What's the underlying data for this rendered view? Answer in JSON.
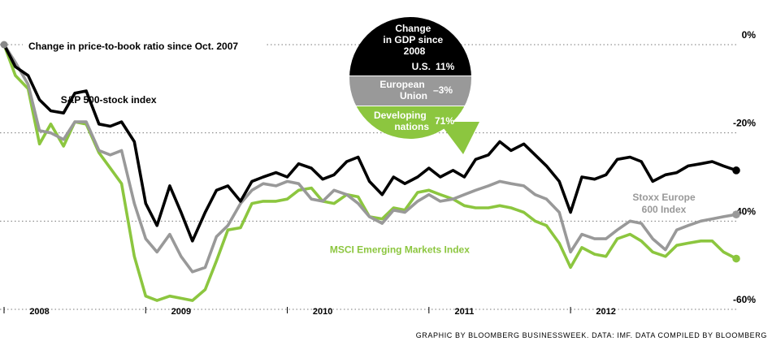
{
  "chart_data": {
    "type": "line",
    "title": "Change in price-to-book ratio since Oct. 2007",
    "ylim": [
      -60,
      0
    ],
    "yticks": [
      {
        "value": 0,
        "label": "0%"
      },
      {
        "value": -20,
        "label": "-20%"
      },
      {
        "value": -40,
        "label": "-40%"
      },
      {
        "value": -60,
        "label": "-60%"
      }
    ],
    "xlim": [
      2007.75,
      2012.92
    ],
    "year_labels": [
      {
        "x": 2008.0,
        "label": "2008"
      },
      {
        "x": 2009.0,
        "label": "2009"
      },
      {
        "x": 2010.0,
        "label": "2010"
      },
      {
        "x": 2011.0,
        "label": "2011"
      },
      {
        "x": 2012.0,
        "label": "2012"
      }
    ],
    "year_ticks": [
      2007.75,
      2008.75,
      2009.75,
      2010.75,
      2011.75
    ],
    "series": [
      {
        "name": "S&P 500-stock index",
        "color": "#000000",
        "x": [
          2007.75,
          2007.83,
          2007.92,
          2008.0,
          2008.08,
          2008.17,
          2008.25,
          2008.33,
          2008.42,
          2008.5,
          2008.58,
          2008.67,
          2008.75,
          2008.83,
          2008.92,
          2009.0,
          2009.08,
          2009.17,
          2009.25,
          2009.33,
          2009.42,
          2009.5,
          2009.58,
          2009.67,
          2009.75,
          2009.83,
          2009.92,
          2010.0,
          2010.08,
          2010.17,
          2010.25,
          2010.33,
          2010.42,
          2010.5,
          2010.58,
          2010.67,
          2010.75,
          2010.83,
          2010.92,
          2011.0,
          2011.08,
          2011.17,
          2011.25,
          2011.33,
          2011.42,
          2011.5,
          2011.58,
          2011.67,
          2011.75,
          2011.83,
          2011.92,
          2012.0,
          2012.08,
          2012.17,
          2012.25,
          2012.33,
          2012.42,
          2012.5,
          2012.58,
          2012.67,
          2012.75,
          2012.83,
          2012.92
        ],
        "y": [
          0,
          -5,
          -7,
          -12.5,
          -15,
          -15.5,
          -11,
          -10.5,
          -18,
          -18.5,
          -17.5,
          -22,
          -36,
          -41,
          -32,
          -38,
          -44.5,
          -38,
          -33,
          -32,
          -35.5,
          -31,
          -30,
          -29,
          -30,
          -27,
          -28,
          -30.5,
          -29.5,
          -26.5,
          -25.5,
          -31,
          -34,
          -30,
          -31.5,
          -30,
          -28,
          -30,
          -28.5,
          -30,
          -26,
          -25,
          -22,
          -24,
          -22.5,
          -25,
          -27.5,
          -31,
          -38,
          -30,
          -30.5,
          -29.5,
          -26,
          -25.5,
          -26.5,
          -31,
          -29.5,
          -29,
          -27.5,
          -27,
          -26.5,
          -27.5,
          -28.5
        ],
        "end_label": ""
      },
      {
        "name": "Stoxx Europe 600 Index",
        "color": "#999999",
        "x": [
          2007.75,
          2007.83,
          2007.92,
          2008.0,
          2008.08,
          2008.17,
          2008.25,
          2008.33,
          2008.42,
          2008.5,
          2008.58,
          2008.67,
          2008.75,
          2008.83,
          2008.92,
          2009.0,
          2009.08,
          2009.17,
          2009.25,
          2009.33,
          2009.42,
          2009.5,
          2009.58,
          2009.67,
          2009.75,
          2009.83,
          2009.92,
          2010.0,
          2010.08,
          2010.17,
          2010.25,
          2010.33,
          2010.42,
          2010.5,
          2010.58,
          2010.67,
          2010.75,
          2010.83,
          2010.92,
          2011.0,
          2011.08,
          2011.17,
          2011.25,
          2011.33,
          2011.42,
          2011.5,
          2011.58,
          2011.67,
          2011.75,
          2011.83,
          2011.92,
          2012.0,
          2012.08,
          2012.17,
          2012.25,
          2012.33,
          2012.42,
          2012.5,
          2012.58,
          2012.67,
          2012.75,
          2012.83,
          2012.92
        ],
        "y": [
          0,
          -4,
          -9,
          -19.5,
          -20,
          -21.5,
          -17.5,
          -17.5,
          -24,
          -25,
          -24,
          -36,
          -44,
          -47,
          -43,
          -48,
          -51.5,
          -50.5,
          -43.5,
          -41,
          -36,
          -33,
          -31.5,
          -32,
          -31,
          -31.5,
          -35,
          -35.5,
          -33,
          -34,
          -36,
          -39,
          -40.5,
          -37.5,
          -38,
          -35.5,
          -34,
          -35.5,
          -35,
          -34,
          -33,
          -32,
          -31,
          -31.5,
          -32,
          -34,
          -35,
          -38,
          -47,
          -43,
          -44,
          -44,
          -42,
          -40,
          -40.5,
          -44,
          -46.5,
          -42,
          -41,
          -40,
          -39.5,
          -39,
          -38.5
        ],
        "end_label": "Stoxx Europe\n600 Index"
      },
      {
        "name": "MSCI Emerging Markets Index",
        "color": "#8cc63f",
        "x": [
          2007.75,
          2007.83,
          2007.92,
          2008.0,
          2008.08,
          2008.17,
          2008.25,
          2008.33,
          2008.42,
          2008.5,
          2008.58,
          2008.67,
          2008.75,
          2008.83,
          2008.92,
          2009.0,
          2009.08,
          2009.17,
          2009.25,
          2009.33,
          2009.42,
          2009.5,
          2009.58,
          2009.67,
          2009.75,
          2009.83,
          2009.92,
          2010.0,
          2010.08,
          2010.17,
          2010.25,
          2010.33,
          2010.42,
          2010.5,
          2010.58,
          2010.67,
          2010.75,
          2010.83,
          2010.92,
          2011.0,
          2011.08,
          2011.17,
          2011.25,
          2011.33,
          2011.42,
          2011.5,
          2011.58,
          2011.67,
          2011.75,
          2011.83,
          2011.92,
          2012.0,
          2012.08,
          2012.17,
          2012.25,
          2012.33,
          2012.42,
          2012.5,
          2012.58,
          2012.67,
          2012.75,
          2012.83,
          2012.92
        ],
        "y": [
          0,
          -7,
          -10,
          -22.5,
          -18,
          -23,
          -17.5,
          -18,
          -24.5,
          -28,
          -31.5,
          -48,
          -57,
          -58,
          -57,
          -57.5,
          -58,
          -55.5,
          -49,
          -42,
          -41.5,
          -36,
          -35.5,
          -35.5,
          -35,
          -33,
          -32.5,
          -35.5,
          -36,
          -34,
          -34.5,
          -39,
          -39.5,
          -37,
          -37.5,
          -33.5,
          -33,
          -34,
          -35,
          -36.5,
          -37,
          -37,
          -36.5,
          -37,
          -38,
          -40,
          -41,
          -45,
          -50.5,
          -46,
          -47.5,
          -48,
          -44,
          -43,
          -44.5,
          -47,
          -48,
          -45.5,
          -45,
          -44.5,
          -44.5,
          -47,
          -48.5
        ],
        "end_label": ""
      }
    ],
    "series_labels": [
      {
        "text": "S&P 500-stock index",
        "x": 2008.15,
        "y": -12.5
      },
      {
        "text": "MSCI Emerging Markets Index",
        "x": 2010.05,
        "y": -46.5
      }
    ],
    "gdp_bubble": {
      "title": "Change\nin GDP since\n2008",
      "rows": [
        {
          "name": "U.S.",
          "value": "11%",
          "color": "#000000"
        },
        {
          "name": "European\nUnion",
          "value": "–3%",
          "color": "#999999"
        },
        {
          "name": "Developing\nnations",
          "value": "71%",
          "color": "#8cc63f"
        }
      ]
    },
    "source": "GRAPHIC BY BLOOMBERG BUSINESSWEEK. DATA: IMF. DATA COMPILED BY BLOOMBERG"
  }
}
